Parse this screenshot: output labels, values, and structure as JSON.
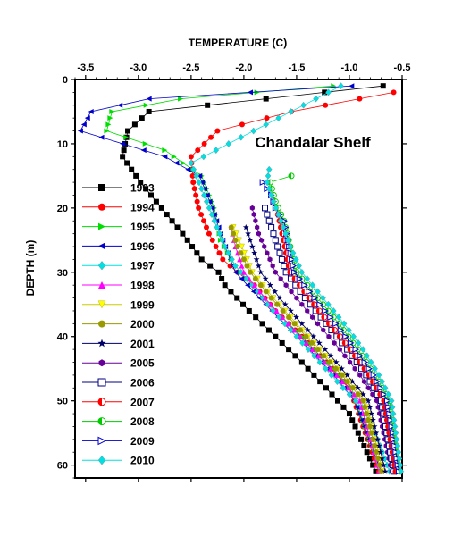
{
  "chart_data": {
    "type": "line",
    "title": "",
    "xlabel": "TEMPERATURE (C)",
    "ylabel": "DEPTH (m)",
    "annotation": "Chandalar Shelf",
    "xlim": [
      -3.6,
      -0.5
    ],
    "ylim": [
      0,
      62
    ],
    "y_inverted": true,
    "x_axis_position": "top",
    "x_ticks": [
      -3.5,
      -3.0,
      -2.5,
      -2.0,
      -1.5,
      -1.0,
      -0.5
    ],
    "x_tick_labels": [
      "-3.5",
      "-3.0",
      "-2.5",
      "-2.0",
      "-1.5",
      "-1.0",
      "-0.5"
    ],
    "y_ticks": [
      0,
      10,
      20,
      30,
      40,
      50,
      60
    ],
    "y_tick_labels": [
      "0",
      "10",
      "20",
      "30",
      "40",
      "50",
      "60"
    ],
    "grid": false,
    "legend_position": "left",
    "series": [
      {
        "name": "1993",
        "color": "#000000",
        "marker": "square-filled",
        "x": [
          -0.68,
          -2.9,
          -3.1,
          -3.15,
          -2.98,
          -2.78,
          -2.58,
          -2.4,
          -2.24,
          -2.18,
          -1.95,
          -1.7,
          -1.45,
          -1.22,
          -1.0,
          -0.75
        ],
        "y": [
          1,
          5,
          8,
          12,
          16,
          20,
          24,
          28,
          30,
          32,
          36,
          40,
          44,
          48,
          52,
          61
        ]
      },
      {
        "name": "1994",
        "color": "#ff0000",
        "marker": "circle-filled",
        "x": [
          -0.58,
          -1.55,
          -2.25,
          -2.5,
          -2.48,
          -2.43,
          -2.33,
          -2.2,
          -2.06,
          -1.9,
          -1.7,
          -1.45,
          -1.22,
          -1.0,
          -0.72
        ],
        "y": [
          2,
          5,
          8,
          12,
          16,
          20,
          24,
          28,
          30,
          32,
          36,
          40,
          44,
          48,
          61
        ]
      },
      {
        "name": "1995",
        "color": "#00dd00",
        "marker": "triangle-right",
        "x": [
          -1.15,
          -2.6,
          -3.25,
          -3.3,
          -2.75,
          -2.4,
          -2.28,
          -2.22,
          -2.12,
          -1.94,
          -1.7,
          -1.45,
          -1.22,
          -0.98,
          -0.7
        ],
        "y": [
          1,
          3,
          5,
          8,
          11,
          15,
          20,
          25,
          28,
          32,
          36,
          40,
          44,
          48,
          61
        ]
      },
      {
        "name": "1996",
        "color": "#0000cc",
        "marker": "triangle-left",
        "x": [
          -0.98,
          -2.9,
          -3.45,
          -3.55,
          -3.15,
          -2.75,
          -2.42,
          -2.3,
          -2.2,
          -2.08,
          -1.85,
          -1.62,
          -1.38,
          -1.15,
          -0.95,
          -0.7
        ],
        "y": [
          1,
          3,
          5,
          8,
          10,
          12,
          15,
          20,
          25,
          30,
          34,
          38,
          42,
          46,
          50,
          61
        ]
      },
      {
        "name": "1997",
        "color": "#00e0e0",
        "marker": "diamond",
        "x": [
          -1.08,
          -2.5,
          -2.28,
          -2.18,
          -2.08,
          -1.92,
          -1.72,
          -1.5,
          -1.28,
          -1.06,
          -0.82,
          -0.62
        ],
        "y": [
          1,
          13,
          22,
          26,
          29,
          32,
          36,
          40,
          44,
          48,
          52,
          61
        ]
      },
      {
        "name": "1998",
        "color": "#ff00ff",
        "marker": "triangle-up",
        "x": [
          -2.12,
          -2.08,
          -2.0,
          -1.8,
          -1.58,
          -1.35,
          -1.12,
          -0.9,
          -0.72
        ],
        "y": [
          23,
          26,
          30,
          34,
          38,
          42,
          46,
          50,
          61
        ]
      },
      {
        "name": "1999",
        "color": "#ffff00",
        "marker": "triangle-down",
        "x": [
          -2.1,
          -2.02,
          -1.92,
          -1.72,
          -1.5,
          -1.28,
          -1.05,
          -0.85,
          -0.68
        ],
        "y": [
          23,
          26,
          30,
          34,
          38,
          42,
          46,
          50,
          61
        ]
      },
      {
        "name": "2000",
        "color": "#999900",
        "marker": "circle-filled",
        "x": [
          -2.12,
          -2.06,
          -1.94,
          -1.74,
          -1.52,
          -1.3,
          -1.07,
          -0.87,
          -0.7
        ],
        "y": [
          23,
          26,
          30,
          34,
          38,
          42,
          46,
          50,
          61
        ]
      },
      {
        "name": "2001",
        "color": "#000066",
        "marker": "star",
        "x": [
          -1.98,
          -1.92,
          -1.84,
          -1.66,
          -1.45,
          -1.23,
          -1.02,
          -0.82,
          -0.66
        ],
        "y": [
          23,
          26,
          30,
          34,
          38,
          42,
          46,
          50,
          61
        ]
      },
      {
        "name": "2005",
        "color": "#660099",
        "marker": "hexagon",
        "x": [
          -1.92,
          -1.86,
          -1.7,
          -1.5,
          -1.3,
          -1.09,
          -0.9,
          -0.74,
          -0.6
        ],
        "y": [
          20,
          24,
          30,
          34,
          38,
          42,
          46,
          50,
          61
        ]
      },
      {
        "name": "2006",
        "color": "#000080",
        "marker": "square-open",
        "x": [
          -1.8,
          -1.72,
          -1.6,
          -1.42,
          -1.22,
          -1.02,
          -0.84,
          -0.7,
          -0.58
        ],
        "y": [
          20,
          24,
          30,
          34,
          38,
          42,
          46,
          50,
          61
        ]
      },
      {
        "name": "2007",
        "color": "#ff0000",
        "marker": "circle-half",
        "x": [
          -1.72,
          -1.66,
          -1.56,
          -1.38,
          -1.19,
          -0.99,
          -0.81,
          -0.67,
          -0.56
        ],
        "y": [
          18,
          22,
          30,
          34,
          38,
          42,
          46,
          50,
          61
        ]
      },
      {
        "name": "2008",
        "color": "#00cc00",
        "marker": "circle-half",
        "x": [
          -1.55,
          -1.75,
          -1.7,
          -1.62,
          -1.5,
          -1.3,
          -1.1,
          -0.92,
          -0.76,
          -0.62,
          -0.52
        ],
        "y": [
          15,
          16,
          19,
          22,
          30,
          34,
          38,
          42,
          46,
          50,
          61
        ]
      },
      {
        "name": "2009",
        "color": "#0000cc",
        "marker": "triangle-right-open",
        "x": [
          -1.82,
          -1.74,
          -1.7,
          -1.62,
          -1.52,
          -1.33,
          -1.13,
          -0.94,
          -0.77,
          -0.64,
          -0.53
        ],
        "y": [
          16,
          18,
          20,
          22,
          30,
          34,
          38,
          42,
          46,
          50,
          61
        ]
      },
      {
        "name": "2010",
        "color": "#00e0e0",
        "marker": "diamond",
        "x": [
          -1.76,
          -1.78,
          -1.72,
          -1.65,
          -1.56,
          -1.45,
          -1.25,
          -1.05,
          -0.87,
          -0.72,
          -0.6,
          -0.51
        ],
        "y": [
          14,
          16,
          19,
          22,
          26,
          30,
          34,
          38,
          42,
          46,
          50,
          61
        ]
      }
    ]
  }
}
